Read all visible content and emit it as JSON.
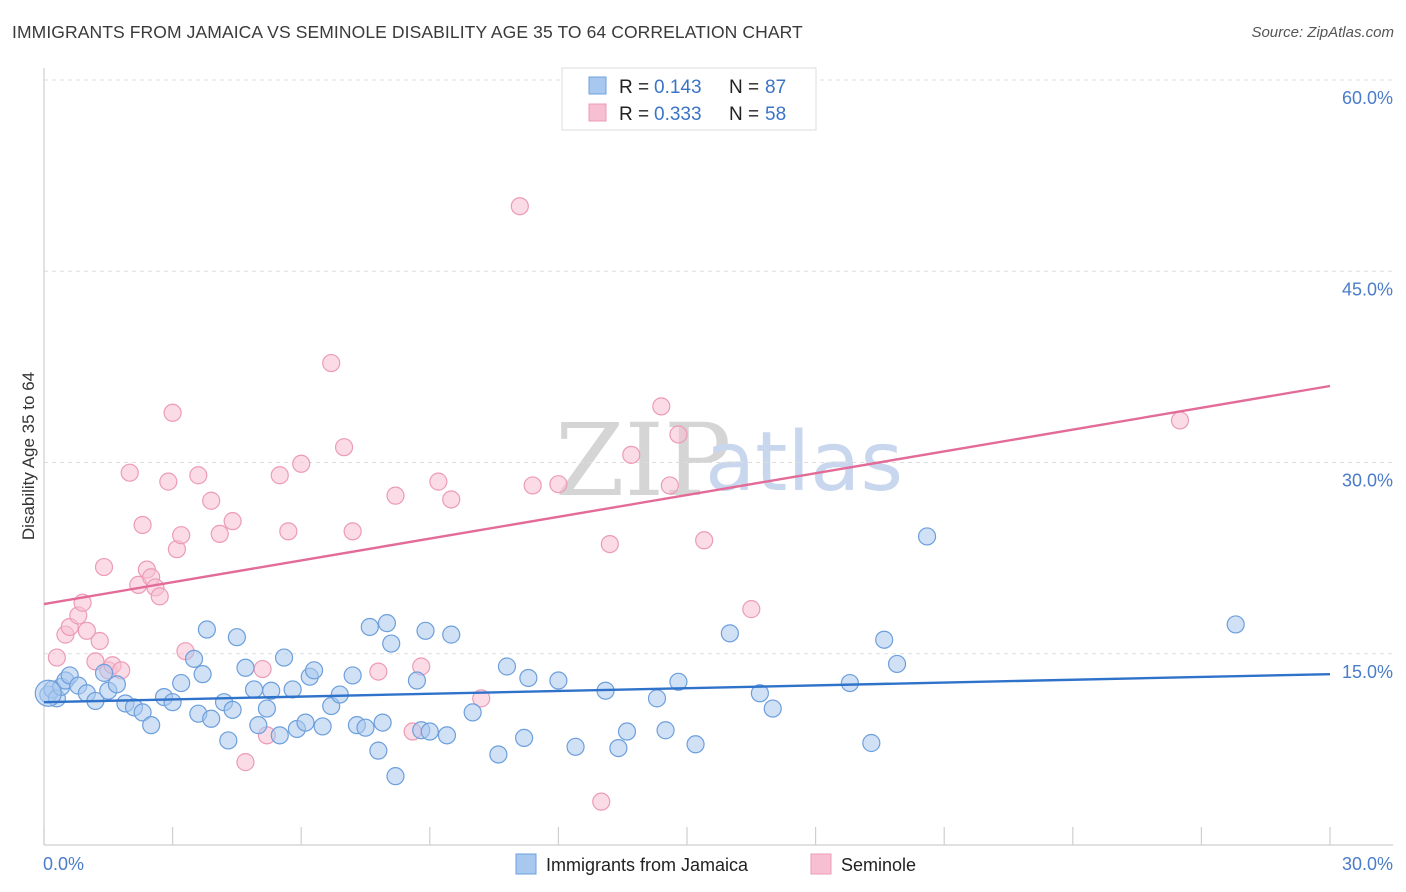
{
  "header": {
    "title": "IMMIGRANTS FROM JAMAICA VS SEMINOLE DISABILITY AGE 35 TO 64 CORRELATION CHART",
    "source": "Source: ZipAtlas.com"
  },
  "watermark": {
    "part1": "ZIP",
    "part2": "atlas"
  },
  "colors": {
    "blue_fill": "#a9c8ef",
    "blue_stroke": "#6d9fdc",
    "blue_line": "#2f72c9",
    "pink_fill": "#f7bfd2",
    "pink_stroke": "#ec9bb6",
    "pink_line": "#e36b97",
    "grid": "#dddddd",
    "axis_label": "#4a7cc9"
  },
  "chart_data": {
    "type": "scatter",
    "title": "IMMIGRANTS FROM JAMAICA VS SEMINOLE DISABILITY AGE 35 TO 64 CORRELATION CHART",
    "xlabel": "",
    "ylabel": "Disability Age 35 to 64",
    "xlim": [
      0,
      30
    ],
    "ylim": [
      0,
      60
    ],
    "x_tick_labels": [
      "0.0%",
      "30.0%"
    ],
    "y_ticks": [
      15,
      30,
      45,
      60
    ],
    "y_tick_labels": [
      "15.0%",
      "30.0%",
      "45.0%",
      "60.0%"
    ],
    "grid": true,
    "legend_position": "top-center",
    "legend": [
      {
        "r_label": "R =",
        "r_value": "0.143",
        "n_label": "N =",
        "n_value": "87"
      },
      {
        "r_label": "R =",
        "r_value": "0.333",
        "n_label": "N =",
        "n_value": "58"
      }
    ],
    "series": [
      {
        "name": "Immigrants from Jamaica",
        "trend": {
          "x": [
            0,
            30
          ],
          "y": [
            11.2,
            13.4
          ]
        },
        "points": [
          [
            0.1,
            11.8
          ],
          [
            0.2,
            12.2
          ],
          [
            0.3,
            11.5
          ],
          [
            0.4,
            12.4
          ],
          [
            0.5,
            12.9
          ],
          [
            0.6,
            13.3
          ],
          [
            0.8,
            12.5
          ],
          [
            1.0,
            11.9
          ],
          [
            1.2,
            11.3
          ],
          [
            1.4,
            13.5
          ],
          [
            1.5,
            12.1
          ],
          [
            1.7,
            12.6
          ],
          [
            1.9,
            11.1
          ],
          [
            2.1,
            10.8
          ],
          [
            2.3,
            10.4
          ],
          [
            2.5,
            9.4
          ],
          [
            2.8,
            11.6
          ],
          [
            3.0,
            11.2
          ],
          [
            3.2,
            12.7
          ],
          [
            3.5,
            14.6
          ],
          [
            3.6,
            10.3
          ],
          [
            3.7,
            13.4
          ],
          [
            3.8,
            16.9
          ],
          [
            3.9,
            9.9
          ],
          [
            4.2,
            11.2
          ],
          [
            4.3,
            8.2
          ],
          [
            4.4,
            10.6
          ],
          [
            4.5,
            16.3
          ],
          [
            4.7,
            13.9
          ],
          [
            4.9,
            12.2
          ],
          [
            5.0,
            9.4
          ],
          [
            5.2,
            10.7
          ],
          [
            5.3,
            12.1
          ],
          [
            5.5,
            8.6
          ],
          [
            5.6,
            14.7
          ],
          [
            5.8,
            12.2
          ],
          [
            5.9,
            9.1
          ],
          [
            6.1,
            9.6
          ],
          [
            6.2,
            13.2
          ],
          [
            6.3,
            13.7
          ],
          [
            6.5,
            9.3
          ],
          [
            6.7,
            10.9
          ],
          [
            6.9,
            11.8
          ],
          [
            7.2,
            13.3
          ],
          [
            7.3,
            9.4
          ],
          [
            7.5,
            9.2
          ],
          [
            7.6,
            17.1
          ],
          [
            7.8,
            7.4
          ],
          [
            7.9,
            9.6
          ],
          [
            8.0,
            17.4
          ],
          [
            8.1,
            15.8
          ],
          [
            8.2,
            5.4
          ],
          [
            8.7,
            12.9
          ],
          [
            8.8,
            9.0
          ],
          [
            8.9,
            16.8
          ],
          [
            9.0,
            8.9
          ],
          [
            9.4,
            8.6
          ],
          [
            9.5,
            16.5
          ],
          [
            10.0,
            10.4
          ],
          [
            10.6,
            7.1
          ],
          [
            10.8,
            14.0
          ],
          [
            11.2,
            8.4
          ],
          [
            11.3,
            13.1
          ],
          [
            12.0,
            12.9
          ],
          [
            12.4,
            7.7
          ],
          [
            13.1,
            12.1
          ],
          [
            13.4,
            7.6
          ],
          [
            13.6,
            8.9
          ],
          [
            14.3,
            11.5
          ],
          [
            14.5,
            9.0
          ],
          [
            14.8,
            12.8
          ],
          [
            15.2,
            7.9
          ],
          [
            16.0,
            16.6
          ],
          [
            16.7,
            11.9
          ],
          [
            17.0,
            10.7
          ],
          [
            18.8,
            12.7
          ],
          [
            19.3,
            8.0
          ],
          [
            19.6,
            16.1
          ],
          [
            19.9,
            14.2
          ],
          [
            20.6,
            24.2
          ],
          [
            27.8,
            17.3
          ]
        ]
      },
      {
        "name": "Seminole",
        "trend": {
          "x": [
            0,
            30
          ],
          "y": [
            18.9,
            36.0
          ]
        },
        "points": [
          [
            0.3,
            14.7
          ],
          [
            0.5,
            16.5
          ],
          [
            0.6,
            17.1
          ],
          [
            0.8,
            18.0
          ],
          [
            0.9,
            19.0
          ],
          [
            1.0,
            16.8
          ],
          [
            1.2,
            14.4
          ],
          [
            1.3,
            16.0
          ],
          [
            1.4,
            21.8
          ],
          [
            1.5,
            13.7
          ],
          [
            1.6,
            14.1
          ],
          [
            1.8,
            13.7
          ],
          [
            2.0,
            29.2
          ],
          [
            2.2,
            20.4
          ],
          [
            2.3,
            25.1
          ],
          [
            2.4,
            21.6
          ],
          [
            2.5,
            21.0
          ],
          [
            2.6,
            20.2
          ],
          [
            2.7,
            19.5
          ],
          [
            2.9,
            28.5
          ],
          [
            3.0,
            33.9
          ],
          [
            3.1,
            23.2
          ],
          [
            3.2,
            24.3
          ],
          [
            3.3,
            15.2
          ],
          [
            3.6,
            29.0
          ],
          [
            3.9,
            27.0
          ],
          [
            4.1,
            24.4
          ],
          [
            4.4,
            25.4
          ],
          [
            4.7,
            6.5
          ],
          [
            5.1,
            13.8
          ],
          [
            5.2,
            8.6
          ],
          [
            5.5,
            29.0
          ],
          [
            5.7,
            24.6
          ],
          [
            6.0,
            29.9
          ],
          [
            6.7,
            37.8
          ],
          [
            7.0,
            31.2
          ],
          [
            7.2,
            24.6
          ],
          [
            7.8,
            13.6
          ],
          [
            8.2,
            27.4
          ],
          [
            8.6,
            8.9
          ],
          [
            8.8,
            14.0
          ],
          [
            9.2,
            28.5
          ],
          [
            9.5,
            27.1
          ],
          [
            10.2,
            11.5
          ],
          [
            11.1,
            50.1
          ],
          [
            11.4,
            28.2
          ],
          [
            12.0,
            28.3
          ],
          [
            13.0,
            3.4
          ],
          [
            13.2,
            23.6
          ],
          [
            13.7,
            30.6
          ],
          [
            14.4,
            34.4
          ],
          [
            14.6,
            28.2
          ],
          [
            14.8,
            32.2
          ],
          [
            15.4,
            23.9
          ],
          [
            16.5,
            18.5
          ],
          [
            26.5,
            33.3
          ]
        ]
      }
    ]
  }
}
